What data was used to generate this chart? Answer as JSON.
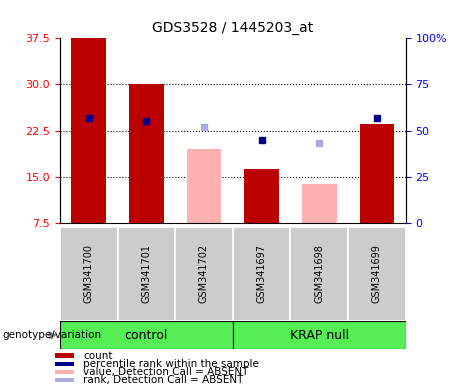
{
  "title": "GDS3528 / 1445203_at",
  "samples": [
    "GSM341700",
    "GSM341701",
    "GSM341702",
    "GSM341697",
    "GSM341698",
    "GSM341699"
  ],
  "red_bars": [
    37.5,
    30.0,
    null,
    16.3,
    null,
    23.5
  ],
  "pink_bars": [
    null,
    null,
    19.5,
    null,
    13.8,
    null
  ],
  "blue_rank_right": [
    57,
    55,
    null,
    45,
    null,
    57
  ],
  "lightblue_rank_right": [
    null,
    null,
    52,
    null,
    43,
    null
  ],
  "ylim_left": [
    7.5,
    37.5
  ],
  "ylim_right": [
    0,
    100
  ],
  "left_ticks": [
    7.5,
    15.0,
    22.5,
    30.0,
    37.5
  ],
  "right_ticks": [
    0,
    25,
    50,
    75,
    100
  ],
  "bar_width": 0.6,
  "bar_bottom": 7.5,
  "red_color": "#bb0000",
  "blue_color": "#00008b",
  "pink_color": "#ffb0b0",
  "lightblue_color": "#aaaadd",
  "group_control_color": "#aaffaa",
  "group_krap_color": "#55ee55",
  "sample_bg_color": "#cccccc",
  "groups": [
    {
      "name": "control",
      "start": 0,
      "end": 2
    },
    {
      "name": "KRAP null",
      "start": 3,
      "end": 5
    }
  ],
  "grid_ticks": [
    15.0,
    22.5,
    30.0
  ],
  "legend_items": [
    {
      "color": "#bb0000",
      "label": "count"
    },
    {
      "color": "#00008b",
      "label": "percentile rank within the sample"
    },
    {
      "color": "#ffb0b0",
      "label": "value, Detection Call = ABSENT"
    },
    {
      "color": "#aaaadd",
      "label": "rank, Detection Call = ABSENT"
    }
  ]
}
